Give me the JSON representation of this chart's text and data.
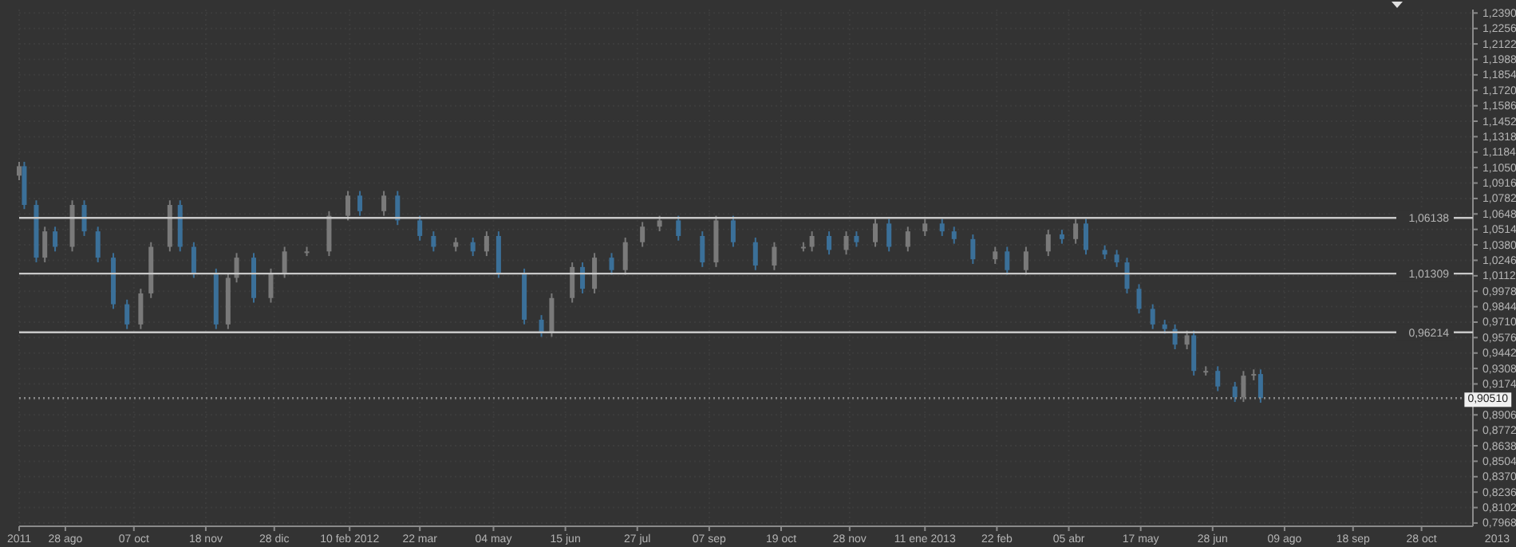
{
  "chart_data": {
    "type": "candlestick",
    "grid": true,
    "colors": [
      "#7a7a7a",
      "#3b7099",
      "#3b7099",
      "#7a7a7a",
      "#3b7099",
      "#7a7a7a",
      "#3b7099",
      "#3b7099",
      "#3b7099",
      "#3b7099",
      "#7a7a7a",
      "#7a7a7a",
      "#7a7a7a",
      "#3b7099",
      "#3b7099",
      "#3b7099",
      "#7a7a7a",
      "#7a7a7a",
      "#3b7099",
      "#7a7a7a",
      "#7a7a7a",
      "#7a7a7a",
      "#7a7a7a",
      "#7a7a7a",
      "#3b7099",
      "#7a7a7a",
      "#3b7099",
      "#3b7099",
      "#3b7099",
      "#7a7a7a",
      "#3b7099",
      "#7a7a7a",
      "#3b7099",
      "#3b7099",
      "#3b7099",
      "#7a7a7a",
      "#7a7a7a",
      "#3b7099",
      "#7a7a7a",
      "#3b7099",
      "#7a7a7a",
      "#7a7a7a",
      "#7a7a7a",
      "#3b7099",
      "#3b7099",
      "#7a7a7a",
      "#3b7099",
      "#3b7099",
      "#7a7a7a",
      "#7a7a7a",
      "#7a7a7a",
      "#3b7099",
      "#7a7a7a",
      "#3b7099",
      "#7a7a7a",
      "#3b7099",
      "#7a7a7a",
      "#7a7a7a",
      "#3b7099",
      "#3b7099",
      "#3b7099",
      "#7a7a7a",
      "#3b7099",
      "#7a7a7a",
      "#7a7a7a",
      "#3b7099",
      "#7a7a7a",
      "#3b7099",
      "#3b7099",
      "#3b7099",
      "#3b7099",
      "#3b7099",
      "#3b7099",
      "#3b7099",
      "#3b7099",
      "#7a7a7a",
      "#3b7099",
      "#7a7a7a",
      "#3b7099",
      "#3b7099",
      "#7a7a7a",
      "#7a7a7a",
      "#3b7099"
    ],
    "x": [
      "2011-08-01",
      "2011-08-04",
      "2011-08-11",
      "2011-08-16",
      "2011-08-22",
      "2011-09-01",
      "2011-09-08",
      "2011-09-16",
      "2011-09-25",
      "2011-10-03",
      "2011-10-11",
      "2011-10-17",
      "2011-10-28",
      "2011-11-03",
      "2011-11-11",
      "2011-11-24",
      "2011-12-01",
      "2011-12-06",
      "2011-12-16",
      "2011-12-26",
      "2012-01-03",
      "2012-01-16",
      "2012-01-29",
      "2012-02-09",
      "2012-02-16",
      "2012-03-01",
      "2012-03-09",
      "2012-03-22",
      "2012-03-30",
      "2012-04-12",
      "2012-04-22",
      "2012-04-30",
      "2012-05-07",
      "2012-05-22",
      "2012-06-01",
      "2012-06-07",
      "2012-06-19",
      "2012-06-25",
      "2012-07-02",
      "2012-07-12",
      "2012-07-20",
      "2012-07-30",
      "2012-08-09",
      "2012-08-20",
      "2012-09-03",
      "2012-09-11",
      "2012-09-21",
      "2012-10-04",
      "2012-10-15",
      "2012-11-01",
      "2012-11-06",
      "2012-11-16",
      "2012-11-26",
      "2012-12-02",
      "2012-12-13",
      "2012-12-21",
      "2013-01-01",
      "2013-01-11",
      "2013-01-21",
      "2013-01-28",
      "2013-02-08",
      "2013-02-21",
      "2013-02-28",
      "2013-03-11",
      "2013-03-24",
      "2013-04-01",
      "2013-04-09",
      "2013-04-15",
      "2013-04-26",
      "2013-05-03",
      "2013-05-09",
      "2013-05-16",
      "2013-05-24",
      "2013-05-31",
      "2013-06-06",
      "2013-06-13",
      "2013-06-17",
      "2013-06-24",
      "2013-07-01",
      "2013-07-11",
      "2013-07-16",
      "2013-07-22",
      "2013-07-26"
    ],
    "ohlc": [
      [
        1.098,
        1.11,
        1.094,
        1.1062
      ],
      [
        1.1062,
        1.11,
        1.069,
        1.0726
      ],
      [
        1.0726,
        1.0766,
        1.0229,
        1.0269
      ],
      [
        1.0269,
        1.0537,
        1.0229,
        1.0497
      ],
      [
        1.0497,
        1.0537,
        1.0323,
        1.0363
      ],
      [
        1.0363,
        1.0766,
        1.0323,
        1.0726
      ],
      [
        1.0726,
        1.0766,
        1.0457,
        1.0497
      ],
      [
        1.0497,
        1.0537,
        1.0229,
        1.0269
      ],
      [
        1.0269,
        1.0309,
        0.9825,
        0.9865
      ],
      [
        0.9865,
        0.9905,
        0.965,
        0.969
      ],
      [
        0.969,
        0.9999,
        0.965,
        0.9959
      ],
      [
        0.9959,
        1.0403,
        0.9919,
        1.0363
      ],
      [
        1.0363,
        1.0766,
        1.0323,
        1.0726
      ],
      [
        1.0726,
        1.0766,
        1.0323,
        1.0363
      ],
      [
        1.0363,
        1.0403,
        1.0094,
        1.0134
      ],
      [
        1.0134,
        1.0174,
        0.965,
        0.969
      ],
      [
        0.969,
        1.0134,
        0.965,
        1.0094
      ],
      [
        1.0094,
        1.0309,
        1.0054,
        1.0269
      ],
      [
        1.0269,
        1.0309,
        0.9879,
        0.9919
      ],
      [
        0.9919,
        1.0174,
        0.9879,
        1.0134
      ],
      [
        1.0134,
        1.0363,
        1.0094,
        1.0323
      ],
      [
        1.0323,
        1.0363,
        1.0283,
        1.0323
      ],
      [
        1.0323,
        1.0672,
        1.0283,
        1.0632
      ],
      [
        1.0632,
        1.0847,
        1.0592,
        1.0807
      ],
      [
        1.0807,
        1.0847,
        1.0632,
        1.0672
      ],
      [
        1.0672,
        1.0847,
        1.0632,
        1.0807
      ],
      [
        1.0807,
        1.0847,
        1.0552,
        1.0592
      ],
      [
        1.0592,
        1.0632,
        1.0417,
        1.0457
      ],
      [
        1.0457,
        1.0497,
        1.0323,
        1.0363
      ],
      [
        1.0363,
        1.0443,
        1.0323,
        1.0403
      ],
      [
        1.0403,
        1.0443,
        1.0283,
        1.0323
      ],
      [
        1.0323,
        1.0497,
        1.0283,
        1.0457
      ],
      [
        1.0457,
        1.0497,
        1.0094,
        1.0134
      ],
      [
        1.0134,
        1.0174,
        0.9691,
        0.9731
      ],
      [
        0.9731,
        0.9771,
        0.9583,
        0.9623
      ],
      [
        0.9623,
        0.9959,
        0.9583,
        0.9919
      ],
      [
        0.9919,
        1.0228,
        0.9879,
        1.0188
      ],
      [
        1.0188,
        1.0228,
        0.9959,
        0.9999
      ],
      [
        0.9999,
        1.0309,
        0.9959,
        1.0269
      ],
      [
        1.0269,
        1.0309,
        1.0121,
        1.0161
      ],
      [
        1.0161,
        1.0443,
        1.0121,
        1.0403
      ],
      [
        1.0403,
        1.0578,
        1.0363,
        1.0538
      ],
      [
        1.0538,
        1.0632,
        1.0498,
        1.0592
      ],
      [
        1.0592,
        1.0632,
        1.0417,
        1.0457
      ],
      [
        1.0457,
        1.0497,
        1.0188,
        1.0228
      ],
      [
        1.0228,
        1.0632,
        1.0188,
        1.0592
      ],
      [
        1.0592,
        1.0632,
        1.0363,
        1.0403
      ],
      [
        1.0403,
        1.0443,
        1.0161,
        1.0201
      ],
      [
        1.0201,
        1.0403,
        1.0161,
        1.0363
      ],
      [
        1.0363,
        1.0403,
        1.0323,
        1.0363
      ],
      [
        1.0363,
        1.0497,
        1.0323,
        1.0457
      ],
      [
        1.0457,
        1.0497,
        1.0296,
        1.0336
      ],
      [
        1.0336,
        1.0497,
        1.0296,
        1.0457
      ],
      [
        1.0457,
        1.0497,
        1.0363,
        1.0403
      ],
      [
        1.0403,
        1.0605,
        1.0363,
        1.0565
      ],
      [
        1.0565,
        1.0605,
        1.0323,
        1.0363
      ],
      [
        1.0363,
        1.0537,
        1.0323,
        1.0497
      ],
      [
        1.0497,
        1.0605,
        1.0457,
        1.0565
      ],
      [
        1.0565,
        1.0605,
        1.0457,
        1.0497
      ],
      [
        1.0497,
        1.0537,
        1.039,
        1.043
      ],
      [
        1.043,
        1.047,
        1.0215,
        1.0255
      ],
      [
        1.0255,
        1.0363,
        1.0215,
        1.0323
      ],
      [
        1.0323,
        1.0363,
        1.0121,
        1.0161
      ],
      [
        1.0161,
        1.0363,
        1.0121,
        1.0323
      ],
      [
        1.0323,
        1.0511,
        1.0283,
        1.0471
      ],
      [
        1.0471,
        1.0511,
        1.039,
        1.043
      ],
      [
        1.043,
        1.0605,
        1.039,
        1.0565
      ],
      [
        1.0565,
        1.0605,
        1.0296,
        1.0336
      ],
      [
        1.0336,
        1.0376,
        1.0256,
        1.0296
      ],
      [
        1.0296,
        1.0336,
        1.0188,
        1.0228
      ],
      [
        1.0228,
        1.0268,
        0.9959,
        0.9999
      ],
      [
        0.9999,
        1.0039,
        0.9785,
        0.9825
      ],
      [
        0.9825,
        0.9865,
        0.965,
        0.969
      ],
      [
        0.969,
        0.973,
        0.961,
        0.965
      ],
      [
        0.965,
        0.969,
        0.9475,
        0.9515
      ],
      [
        0.9515,
        0.9636,
        0.9475,
        0.9596
      ],
      [
        0.9596,
        0.9636,
        0.9247,
        0.9287
      ],
      [
        0.9287,
        0.9327,
        0.9247,
        0.9287
      ],
      [
        0.9287,
        0.9327,
        0.9112,
        0.9152
      ],
      [
        0.9152,
        0.9192,
        0.9018,
        0.9058
      ],
      [
        0.9058,
        0.9286,
        0.9018,
        0.9246
      ],
      [
        0.9246,
        0.93,
        0.9206,
        0.926
      ],
      [
        0.926,
        0.93,
        0.9011,
        0.9051
      ]
    ],
    "xlim": [
      "2011-08-01",
      "2013-11-27"
    ],
    "xticks": [
      {
        "value": "2011-08-01",
        "label": "2011"
      },
      {
        "value": "2011-08-28",
        "label": "28 ago"
      },
      {
        "value": "2011-10-07",
        "label": "07 oct"
      },
      {
        "value": "2011-11-18",
        "label": "18 nov"
      },
      {
        "value": "2011-12-28",
        "label": "28 dic"
      },
      {
        "value": "2012-02-10",
        "label": "10 feb 2012"
      },
      {
        "value": "2012-03-22",
        "label": "22 mar"
      },
      {
        "value": "2012-05-04",
        "label": "04 may"
      },
      {
        "value": "2012-06-15",
        "label": "15 jun"
      },
      {
        "value": "2012-07-27",
        "label": "27 jul"
      },
      {
        "value": "2012-09-07",
        "label": "07 sep"
      },
      {
        "value": "2012-10-19",
        "label": "19 oct"
      },
      {
        "value": "2012-11-28",
        "label": "28 nov"
      },
      {
        "value": "2013-01-11",
        "label": "11 ene 2013"
      },
      {
        "value": "2013-02-22",
        "label": "22 feb"
      },
      {
        "value": "2013-04-05",
        "label": "05 abr"
      },
      {
        "value": "2013-05-17",
        "label": "17 may"
      },
      {
        "value": "2013-06-28",
        "label": "28 jun"
      },
      {
        "value": "2013-08-09",
        "label": "09 ago"
      },
      {
        "value": "2013-09-18",
        "label": "18 sep"
      },
      {
        "value": "2013-10-28",
        "label": "28 oct"
      }
    ],
    "ylim": [
      0.794,
      1.242
    ],
    "yticks": [
      {
        "value": 0.7968,
        "label": "0,7968"
      },
      {
        "value": 0.8102,
        "label": "0,8102"
      },
      {
        "value": 0.8236,
        "label": "0,8236"
      },
      {
        "value": 0.837,
        "label": "0,8370"
      },
      {
        "value": 0.8504,
        "label": "0,8504"
      },
      {
        "value": 0.8638,
        "label": "0,8638"
      },
      {
        "value": 0.8772,
        "label": "0,8772"
      },
      {
        "value": 0.8906,
        "label": "0,8906"
      },
      {
        "value": 0.904,
        "label": null
      },
      {
        "value": 0.9174,
        "label": "0,9174"
      },
      {
        "value": 0.9308,
        "label": "0,9308"
      },
      {
        "value": 0.9442,
        "label": "0,9442"
      },
      {
        "value": 0.9576,
        "label": "0,9576"
      },
      {
        "value": 0.971,
        "label": "0,9710"
      },
      {
        "value": 0.9844,
        "label": "0,9844"
      },
      {
        "value": 0.9978,
        "label": "0,9978"
      },
      {
        "value": 1.0112,
        "label": "1,0112"
      },
      {
        "value": 1.0246,
        "label": "1,0246"
      },
      {
        "value": 1.038,
        "label": "1,0380"
      },
      {
        "value": 1.0514,
        "label": "1,0514"
      },
      {
        "value": 1.0648,
        "label": "1,0648"
      },
      {
        "value": 1.0782,
        "label": "1,0782"
      },
      {
        "value": 1.0916,
        "label": "1,0916"
      },
      {
        "value": 1.105,
        "label": "1,1050"
      },
      {
        "value": 1.1184,
        "label": "1,1184"
      },
      {
        "value": 1.1318,
        "label": "1,1318"
      },
      {
        "value": 1.1452,
        "label": "1,1452"
      },
      {
        "value": 1.1586,
        "label": "1,1586"
      },
      {
        "value": 1.172,
        "label": "1,1720"
      },
      {
        "value": 1.1854,
        "label": "1,1854"
      },
      {
        "value": 1.1988,
        "label": "1,1988"
      },
      {
        "value": 1.2122,
        "label": "1,2122"
      },
      {
        "value": 1.2256,
        "label": "1,2256"
      },
      {
        "value": 1.239,
        "label": "1,2390"
      }
    ],
    "ref_lines": [
      {
        "axis": "y",
        "value": 1.06138,
        "label": "1,06138",
        "color": "#c8c8c8",
        "line_style": "solid"
      },
      {
        "axis": "y",
        "value": 1.01309,
        "label": "1,01309",
        "color": "#c8c8c8",
        "line_style": "solid"
      },
      {
        "axis": "y",
        "value": 0.96214,
        "label": "0,96214",
        "color": "#c8c8c8",
        "line_style": "solid"
      },
      {
        "axis": "y",
        "value": 0.9051,
        "label": "0,90510",
        "color": "#8a8a8a",
        "line_style": "dotted"
      }
    ],
    "annotations": [
      "2013"
    ]
  }
}
